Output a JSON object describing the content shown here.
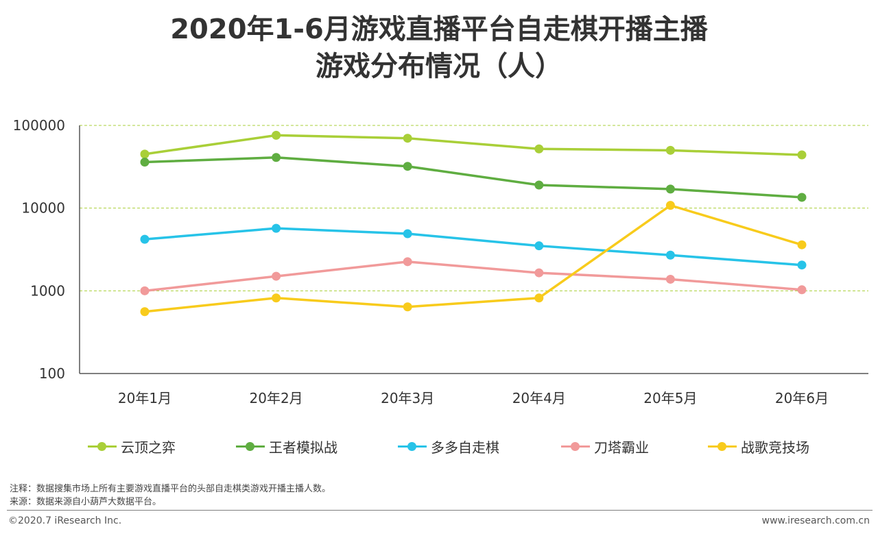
{
  "title_lines": [
    "2020年1-6月游戏直播平台自走棋开播主播",
    "游戏分布情况（人）"
  ],
  "chart_data": {
    "type": "line",
    "title": "2020年1-6月游戏直播平台自走棋开播主播游戏分布情况（人）",
    "categories": [
      "20年1月",
      "20年2月",
      "20年3月",
      "20年4月",
      "20年5月",
      "20年6月"
    ],
    "y_scale": "log",
    "ylim": [
      100,
      100000
    ],
    "y_ticks": [
      100,
      1000,
      10000,
      100000
    ],
    "y_tick_labels": [
      "100",
      "1000",
      "10000",
      "100000"
    ],
    "grid": "horizontal dashed",
    "legend_position": "bottom",
    "series": [
      {
        "name": "云顶之弈",
        "color": "#A9CF38",
        "values": [
          45000,
          76000,
          70000,
          52000,
          50000,
          44000
        ]
      },
      {
        "name": "王者模拟战",
        "color": "#5FAD41",
        "values": [
          36000,
          41000,
          32000,
          19000,
          17000,
          13500
        ]
      },
      {
        "name": "多多自走棋",
        "color": "#27C3E8",
        "values": [
          4200,
          5700,
          4900,
          3500,
          2700,
          2050
        ]
      },
      {
        "name": "刀塔霸业",
        "color": "#F19A9A",
        "values": [
          1000,
          1500,
          2250,
          1650,
          1380,
          1030
        ]
      },
      {
        "name": "战歌竞技场",
        "color": "#F8CB1C",
        "values": [
          560,
          820,
          640,
          820,
          10800,
          3600
        ]
      }
    ]
  },
  "notes": {
    "line1": "注释：数据搜集市场上所有主要游戏直播平台的头部自走棋类游戏开播主播人数。",
    "line2": "来源：数据来源自小葫芦大数据平台。"
  },
  "footer": {
    "copyright": "©2020.7 iResearch Inc.",
    "website": "www.iresearch.com.cn"
  }
}
